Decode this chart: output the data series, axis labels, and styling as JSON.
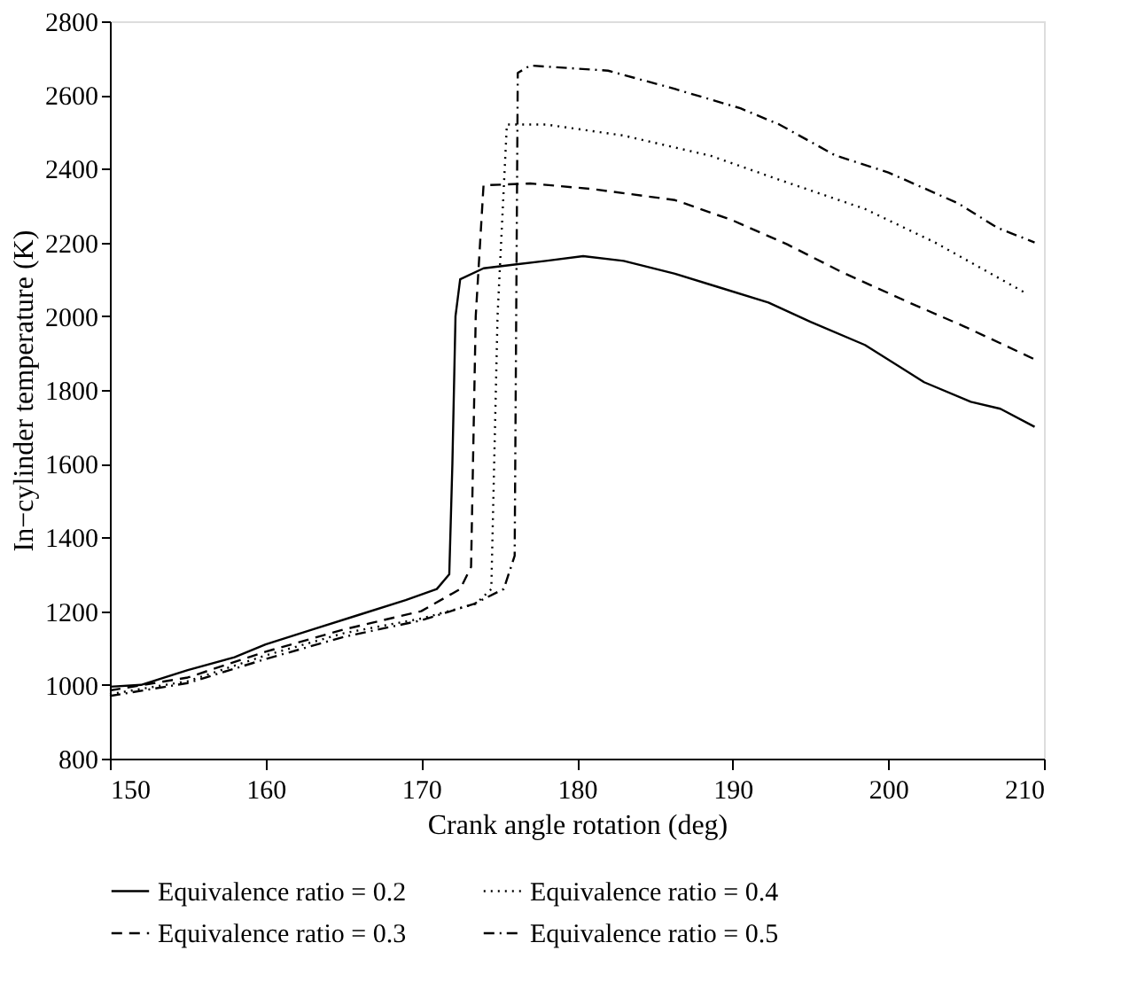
{
  "chart_data": {
    "type": "line",
    "xlabel": "Crank angle rotation (deg)",
    "ylabel": "In−cylinder temperature (K)",
    "xlim": [
      150,
      210
    ],
    "xticks": [
      150,
      160,
      170,
      180,
      190,
      200,
      210
    ],
    "ylim": [
      800,
      2800
    ],
    "yticks": [
      800,
      1000,
      1200,
      1400,
      1600,
      1800,
      2000,
      2200,
      2400,
      2600,
      2800
    ],
    "grid": false,
    "legend": "bottom",
    "marker": "none",
    "series": [
      {
        "name": "Equivalence ratio = 0.2",
        "color": "#000000",
        "line_style": "solid",
        "x": [
          150,
          152,
          155,
          158,
          160,
          163,
          166,
          169,
          171,
          171.8,
          172,
          172.2,
          172.5,
          174,
          176,
          178,
          180.4,
          183,
          186.3,
          189,
          192.3,
          195,
          198.5,
          202.3,
          205.3,
          207.2,
          209.4
        ],
        "values": [
          995,
          1000,
          1040,
          1075,
          1110,
          1150,
          1190,
          1230,
          1260,
          1300,
          1600,
          2000,
          2100,
          2130,
          2140,
          2150,
          2163,
          2150,
          2115,
          2080,
          2037,
          1985,
          1922,
          1821,
          1768,
          1749,
          1700
        ]
      },
      {
        "name": "Equivalence ratio = 0.3",
        "color": "#000000",
        "line_style": "dashed",
        "x": [
          150,
          155,
          160,
          165,
          170,
          172.5,
          173.2,
          173.5,
          174,
          177,
          181,
          186.3,
          190,
          193.5,
          197,
          201.4,
          205,
          209.4
        ],
        "values": [
          985,
          1020,
          1090,
          1150,
          1200,
          1260,
          1320,
          2000,
          2355,
          2360,
          2345,
          2315,
          2260,
          2195,
          2120,
          2036,
          1970,
          1883
        ]
      },
      {
        "name": "Equivalence ratio = 0.4",
        "color": "#000000",
        "line_style": "dotted",
        "x": [
          150,
          155,
          160,
          165,
          170,
          173.5,
          174.5,
          174.9,
          175.5,
          178,
          183,
          188.6,
          193,
          198.5,
          203,
          208.9
        ],
        "values": [
          975,
          1010,
          1080,
          1140,
          1180,
          1220,
          1260,
          2000,
          2520,
          2520,
          2490,
          2435,
          2370,
          2291,
          2200,
          2061
        ]
      },
      {
        "name": "Equivalence ratio = 0.5",
        "color": "#000000",
        "line_style": "dashdot",
        "x": [
          150,
          155,
          160,
          165,
          170,
          173.4,
          175.3,
          176,
          176.2,
          177,
          182,
          186,
          190.5,
          193,
          196.6,
          200,
          204.5,
          207,
          209.4
        ],
        "values": [
          970,
          1005,
          1070,
          1130,
          1175,
          1220,
          1260,
          1350,
          2660,
          2680,
          2666,
          2620,
          2564,
          2520,
          2436,
          2390,
          2306,
          2240,
          2200
        ]
      }
    ]
  }
}
